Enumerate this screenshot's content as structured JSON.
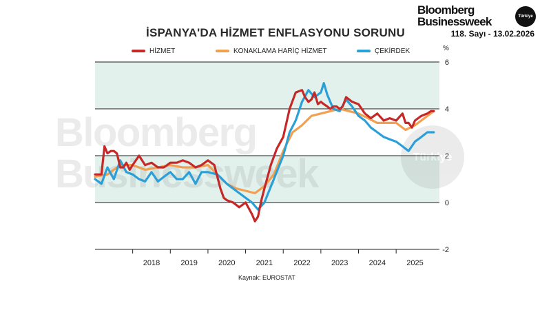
{
  "brand": {
    "line1": "Bloomberg",
    "line2": "Businessweek",
    "badge": "Türkiye",
    "issue": "118. Sayı - 13.02.2026"
  },
  "watermark": {
    "line1": "Bloomberg",
    "line2": "Businessweek",
    "badge": "Türkiye"
  },
  "chart_data": {
    "type": "line",
    "title": "İSPANYA'DA HİZMET ENFLASYONU SORUNU",
    "unit": "%",
    "source": "Kaynak: EUROSTAT",
    "xlabel": "",
    "ylabel": "",
    "ylim": [
      -2,
      6
    ],
    "yticks": [
      -2,
      0,
      2,
      4,
      6
    ],
    "xlim": [
      2017.0,
      2026.15
    ],
    "xticks": [
      2018,
      2019,
      2020,
      2021,
      2022,
      2023,
      2024,
      2025
    ],
    "shaded_bands": [
      [
        0,
        2
      ],
      [
        4,
        6
      ]
    ],
    "legend_position": "top",
    "grid": false,
    "series": [
      {
        "name": "HİZMET",
        "color": "#c62828",
        "x": [
          2017.0,
          2017.17,
          2017.25,
          2017.33,
          2017.42,
          2017.5,
          2017.58,
          2017.67,
          2017.75,
          2017.83,
          2017.92,
          2018.0,
          2018.17,
          2018.33,
          2018.5,
          2018.67,
          2018.83,
          2019.0,
          2019.17,
          2019.33,
          2019.5,
          2019.67,
          2019.83,
          2020.0,
          2020.17,
          2020.25,
          2020.33,
          2020.42,
          2020.5,
          2020.67,
          2020.83,
          2021.0,
          2021.17,
          2021.25,
          2021.33,
          2021.42,
          2021.5,
          2021.67,
          2021.83,
          2022.0,
          2022.17,
          2022.33,
          2022.5,
          2022.58,
          2022.67,
          2022.75,
          2022.83,
          2022.92,
          2023.0,
          2023.08,
          2023.17,
          2023.25,
          2023.33,
          2023.42,
          2023.5,
          2023.58,
          2023.67,
          2023.75,
          2023.83,
          2024.0,
          2024.17,
          2024.33,
          2024.5,
          2024.67,
          2024.83,
          2025.0,
          2025.17,
          2025.25,
          2025.33,
          2025.42,
          2025.5,
          2025.67,
          2025.83,
          2025.92,
          2026.0
        ],
        "values": [
          1.2,
          1.2,
          2.4,
          2.1,
          2.2,
          2.2,
          2.1,
          1.5,
          1.5,
          1.7,
          1.4,
          1.6,
          2.0,
          1.6,
          1.7,
          1.5,
          1.5,
          1.7,
          1.7,
          1.8,
          1.7,
          1.5,
          1.6,
          1.8,
          1.6,
          1.1,
          0.6,
          0.2,
          0.1,
          0.0,
          -0.2,
          0.0,
          -0.5,
          -0.8,
          -0.6,
          0.1,
          0.6,
          1.6,
          2.3,
          2.8,
          4.0,
          4.7,
          4.8,
          4.5,
          4.3,
          4.4,
          4.7,
          4.2,
          4.3,
          4.2,
          4.1,
          4.0,
          4.1,
          4.1,
          4.0,
          4.1,
          4.5,
          4.4,
          4.3,
          4.2,
          3.8,
          3.6,
          3.8,
          3.5,
          3.6,
          3.5,
          3.8,
          3.4,
          3.4,
          3.2,
          3.5,
          3.7,
          3.8,
          3.9,
          3.9
        ]
      },
      {
        "name": "KONAKLAMA HARİÇ HİZMET",
        "color": "#f0a050",
        "x": [
          2017.0,
          2017.33,
          2017.67,
          2018.0,
          2018.33,
          2018.67,
          2019.0,
          2019.33,
          2019.67,
          2020.0,
          2020.25,
          2020.5,
          2020.75,
          2021.0,
          2021.25,
          2021.5,
          2021.75,
          2022.0,
          2022.25,
          2022.5,
          2022.75,
          2023.0,
          2023.25,
          2023.5,
          2023.75,
          2024.0,
          2024.25,
          2024.5,
          2024.75,
          2025.0,
          2025.25,
          2025.5,
          2025.75,
          2026.0
        ],
        "values": [
          1.1,
          1.2,
          1.6,
          1.6,
          1.4,
          1.5,
          1.6,
          1.5,
          1.5,
          1.6,
          1.2,
          0.8,
          0.6,
          0.5,
          0.4,
          0.7,
          1.2,
          2.2,
          3.0,
          3.3,
          3.7,
          3.8,
          3.9,
          4.0,
          3.9,
          3.8,
          3.6,
          3.4,
          3.4,
          3.4,
          3.1,
          3.3,
          3.6,
          3.9
        ]
      },
      {
        "name": "ÇEKİRDEK",
        "color": "#2b9fd8",
        "x": [
          2017.0,
          2017.17,
          2017.33,
          2017.5,
          2017.67,
          2017.83,
          2018.0,
          2018.17,
          2018.33,
          2018.5,
          2018.67,
          2018.83,
          2019.0,
          2019.17,
          2019.33,
          2019.5,
          2019.67,
          2019.83,
          2020.0,
          2020.25,
          2020.5,
          2020.75,
          2021.0,
          2021.17,
          2021.33,
          2021.5,
          2021.75,
          2022.0,
          2022.17,
          2022.33,
          2022.5,
          2022.67,
          2022.83,
          2023.0,
          2023.08,
          2023.17,
          2023.33,
          2023.5,
          2023.67,
          2023.83,
          2024.0,
          2024.17,
          2024.33,
          2024.5,
          2024.67,
          2024.83,
          2025.0,
          2025.17,
          2025.25,
          2025.33,
          2025.5,
          2025.67,
          2025.83,
          2026.0
        ],
        "values": [
          1.0,
          0.8,
          1.5,
          1.0,
          1.8,
          1.3,
          1.2,
          1.0,
          0.9,
          1.3,
          0.9,
          1.1,
          1.3,
          1.0,
          1.0,
          1.3,
          0.8,
          1.3,
          1.3,
          1.2,
          0.8,
          0.5,
          0.2,
          0.0,
          -0.3,
          0.0,
          1.0,
          2.0,
          3.0,
          3.5,
          4.3,
          4.8,
          4.5,
          4.7,
          5.1,
          4.6,
          4.0,
          3.9,
          4.4,
          4.1,
          3.7,
          3.5,
          3.2,
          3.0,
          2.8,
          2.7,
          2.6,
          2.4,
          2.3,
          2.2,
          2.6,
          2.8,
          3.0,
          3.0
        ]
      }
    ]
  }
}
